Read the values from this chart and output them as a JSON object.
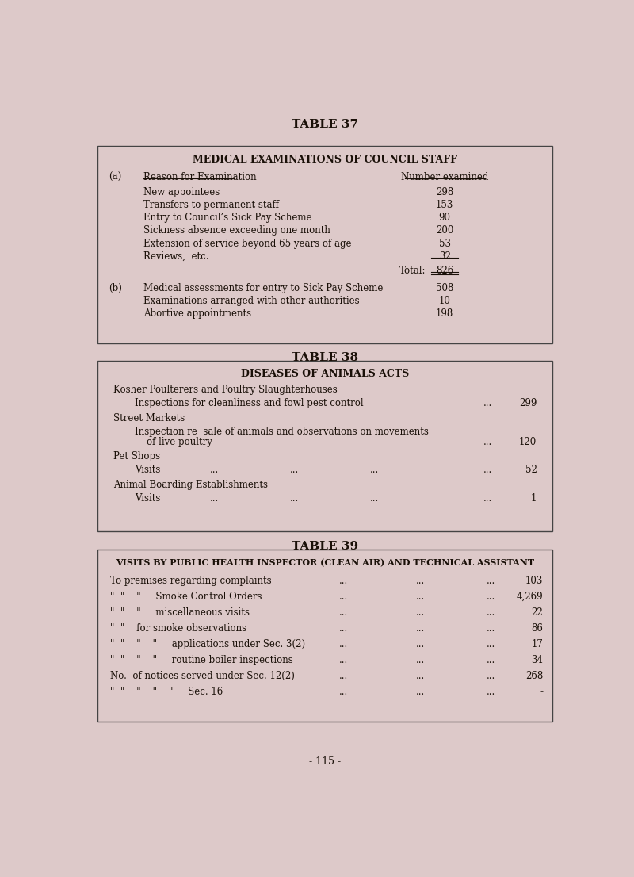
{
  "bg_color": "#ddc9c9",
  "title37": "TABLE 37",
  "title38": "TABLE 38",
  "title39": "TABLE 39",
  "table37_header": "MEDICAL EXAMINATIONS OF COUNCIL STAFF",
  "table37_col_a_label": "(a)",
  "table37_col_a_header": "Reason for Examination",
  "table37_col_b_header": "Number examined",
  "table37_rows_a": [
    [
      "New appointees",
      "298"
    ],
    [
      "Transfers to permanent staff",
      "153"
    ],
    [
      "Entry to Council’s Sick Pay Scheme",
      "90"
    ],
    [
      "Sickness absence exceeding one month",
      "200"
    ],
    [
      "Extension of service beyond 65 years of age",
      "53"
    ],
    [
      "Reviews,  etc.",
      "32"
    ]
  ],
  "table37_total_label": "Total:",
  "table37_total_value": "826",
  "table37_col_b_label": "(b)",
  "table37_rows_b": [
    [
      "Medical assessments for entry to Sick Pay Scheme",
      "508"
    ],
    [
      "Examinations arranged with other authorities",
      "10"
    ],
    [
      "Abortive appointments",
      "198"
    ]
  ],
  "table38_header": "DISEASES OF ANIMALS ACTS",
  "table38_sec1": "Kosher Poulterers and Poultry Slaughterhouses",
  "table38_item1": "Inspections for cleanliness and fowl pest control",
  "table38_val1": "299",
  "table38_sec2": "Street Markets",
  "table38_item2a": "Inspection re  sale of animals and observations on movements",
  "table38_item2b": "of live poultry",
  "table38_val2": "120",
  "table38_sec3": "Pet Shops",
  "table38_item3": "Visits",
  "table38_val3": "52",
  "table38_sec4": "Animal Boarding Establishments",
  "table38_item4": "Visits",
  "table38_val4": "1",
  "table39_header": "VISITS BY PUBLIC HEALTH INSPECTOR (CLEAN AIR) AND TECHNICAL ASSISTANT",
  "table39_rows": [
    [
      "To premises regarding complaints",
      "103"
    ],
    [
      "\"  \"    \"     Smoke Control Orders",
      "4,269"
    ],
    [
      "\"  \"    \"     miscellaneous visits",
      "22"
    ],
    [
      "\"  \"    for smoke observations",
      "86"
    ],
    [
      "\"  \"    \"    \"     applications under Sec. 3(2)",
      "17"
    ],
    [
      "\"  \"    \"    \"     routine boiler inspections",
      "34"
    ],
    [
      "No.  of notices served under Sec. 12(2)",
      "268"
    ],
    [
      "\"  \"    \"    \"    \"     Sec. 16",
      "-"
    ]
  ],
  "page_number": "- 115 -",
  "font_color": "#1a1008",
  "border_color": "#444444"
}
